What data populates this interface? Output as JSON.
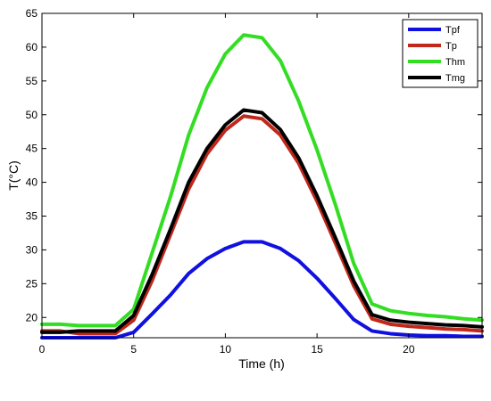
{
  "chart_data": {
    "type": "line",
    "xlabel": "Time (h)",
    "ylabel": "T(°C)",
    "xlim": [
      0,
      24
    ],
    "ylim": [
      17,
      65
    ],
    "xticks": [
      0,
      5,
      10,
      15,
      20
    ],
    "yticks": [
      20,
      25,
      30,
      35,
      40,
      45,
      50,
      55,
      60,
      65
    ],
    "grid": false,
    "legend_position": "top-right",
    "x": [
      0,
      1,
      2,
      3,
      4,
      5,
      6,
      7,
      8,
      9,
      10,
      11,
      12,
      13,
      14,
      15,
      16,
      17,
      18,
      19,
      20,
      21,
      22,
      23,
      24
    ],
    "series": [
      {
        "name": "Tpf",
        "color": "#1010e0",
        "values": [
          17.0,
          17.0,
          17.0,
          17.0,
          17.0,
          17.8,
          20.5,
          23.3,
          26.5,
          28.7,
          30.2,
          31.2,
          31.2,
          30.2,
          28.4,
          25.8,
          22.8,
          19.7,
          18.0,
          17.6,
          17.4,
          17.3,
          17.3,
          17.2,
          17.2
        ]
      },
      {
        "name": "Tp",
        "color": "#c0281c",
        "values": [
          18.0,
          18.0,
          17.6,
          17.6,
          17.6,
          19.6,
          25.4,
          32.2,
          39.0,
          44.2,
          47.7,
          49.8,
          49.4,
          47.0,
          42.8,
          37.2,
          31.0,
          24.7,
          19.8,
          19.0,
          18.7,
          18.5,
          18.3,
          18.2,
          18.0
        ]
      },
      {
        "name": "Thm",
        "color": "#33dd22",
        "values": [
          19.0,
          19.0,
          18.8,
          18.8,
          18.8,
          21.2,
          29.5,
          37.8,
          47.0,
          54.0,
          59.0,
          61.8,
          61.4,
          58.0,
          52.0,
          44.8,
          36.7,
          28.0,
          22.0,
          21.0,
          20.6,
          20.3,
          20.1,
          19.8,
          19.6
        ]
      },
      {
        "name": "Tmg",
        "color": "#000000",
        "values": [
          17.8,
          17.8,
          18.0,
          18.0,
          18.0,
          20.3,
          26.3,
          33.0,
          40.0,
          45.0,
          48.5,
          50.7,
          50.3,
          47.8,
          43.6,
          38.0,
          31.8,
          25.4,
          20.4,
          19.6,
          19.3,
          19.1,
          18.9,
          18.8,
          18.6
        ]
      }
    ]
  }
}
